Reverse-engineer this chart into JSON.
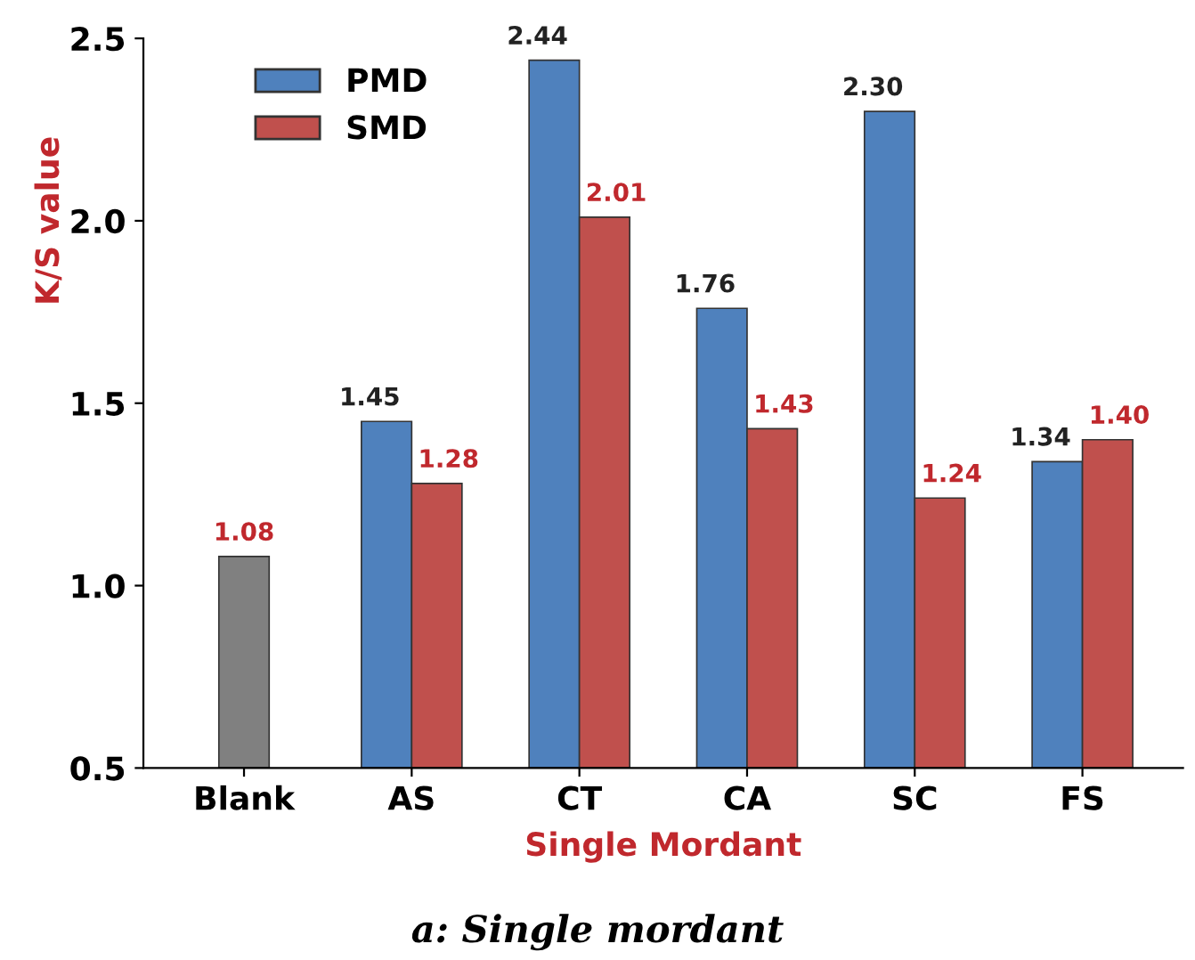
{
  "chart_data": {
    "type": "bar",
    "xlabel": "Single Mordant",
    "ylabel": "K/S value",
    "categories": [
      "Blank",
      "AS",
      "CT",
      "CA",
      "SC",
      "FS"
    ],
    "series": [
      {
        "name": "PMD",
        "color": "#4f81bd",
        "values": [
          null,
          1.45,
          2.44,
          1.76,
          2.3,
          1.34
        ],
        "value_labels": [
          null,
          "1.45",
          "2.44",
          "1.76",
          "2.30",
          "1.34"
        ]
      },
      {
        "name": "SMD",
        "color": "#c0504d",
        "values": [
          null,
          1.28,
          2.01,
          1.43,
          1.24,
          1.4
        ],
        "value_labels": [
          null,
          "1.28",
          "2.01",
          "1.43",
          "1.24",
          "1.40"
        ]
      },
      {
        "color": "#808080",
        "values": [
          1.08,
          null,
          null,
          null,
          null,
          null
        ],
        "value_labels": [
          "1.08",
          null,
          null,
          null,
          null,
          null
        ]
      }
    ],
    "ylim": [
      0.5,
      2.5
    ],
    "yticks": [
      {
        "value": 0.5,
        "label": "0.5"
      },
      {
        "value": 1,
        "label": "1.0"
      },
      {
        "value": 1.5,
        "label": "1.5"
      },
      {
        "value": 2,
        "label": "2.0"
      },
      {
        "value": 2.5,
        "label": "2.5"
      }
    ],
    "grid": false,
    "legend": "top left",
    "annotations": [
      "a: Single mordant"
    ]
  }
}
